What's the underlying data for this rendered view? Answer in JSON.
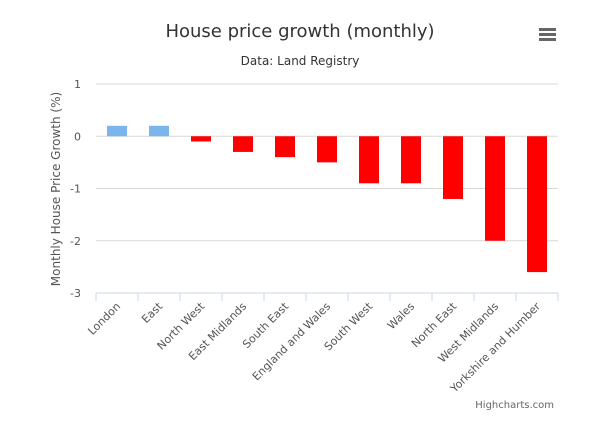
{
  "chart_data": {
    "type": "bar",
    "title": "House price growth (monthly)",
    "subtitle": "Data: Land Registry",
    "xlabel": "",
    "ylabel": "Monthly House Price Growth (%)",
    "ylim": [
      -3,
      1
    ],
    "yticks": [
      1,
      0,
      -1,
      -2,
      -3
    ],
    "grid": true,
    "legend": "none",
    "categories": [
      "London",
      "East",
      "North West",
      "East Midlands",
      "South East",
      "England and Wales",
      "South West",
      "Wales",
      "North East",
      "West Midlands",
      "Yorkshire and Humber"
    ],
    "values": [
      0.2,
      0.2,
      -0.1,
      -0.3,
      -0.4,
      -0.5,
      -0.9,
      -0.9,
      -1.2,
      -2.0,
      -2.6
    ],
    "positive_color": "#7cb5ec",
    "negative_color": "#ff0000"
  },
  "menu": {
    "icon": "hamburger-menu-icon"
  },
  "credits": "Highcharts.com"
}
